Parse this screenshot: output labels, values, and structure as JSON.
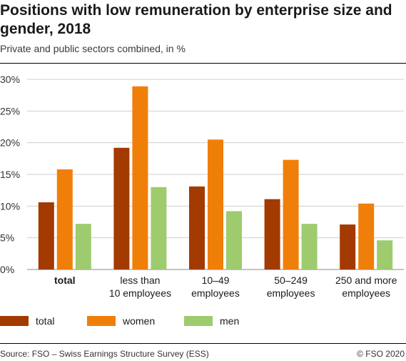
{
  "header": {
    "title": "Positions with low remuneration by enterprise size and gender, 2018",
    "subtitle": "Private and public sectors combined, in %"
  },
  "footer": {
    "source": "Source: FSO – Swiss Earnings Structure Survey (ESS)",
    "copyright": "© FSO 2020"
  },
  "chart_data": {
    "type": "bar",
    "categories": [
      [
        "total"
      ],
      [
        "less than",
        "10 employees"
      ],
      [
        "10–49",
        "employees"
      ],
      [
        "50–249",
        "employees"
      ],
      [
        "250 and more",
        "employees"
      ]
    ],
    "bold_categories": [
      0
    ],
    "series": [
      {
        "name": "total",
        "color": "#a33a00",
        "values": [
          10.6,
          19.2,
          13.1,
          11.1,
          7.1
        ]
      },
      {
        "name": "women",
        "color": "#f07f09",
        "values": [
          15.8,
          28.9,
          20.5,
          17.3,
          10.4
        ]
      },
      {
        "name": "men",
        "color": "#9ecb6e",
        "values": [
          7.2,
          13.0,
          9.2,
          7.2,
          4.6
        ]
      }
    ],
    "ylim": [
      0,
      30
    ],
    "yticks": [
      0,
      5,
      10,
      15,
      20,
      25,
      30
    ],
    "ytick_labels": [
      "0%",
      "5%",
      "10%",
      "15%",
      "20%",
      "25%",
      "30%"
    ],
    "grid": true,
    "legend_position": "bottom-left",
    "title": "",
    "xlabel": "",
    "ylabel": ""
  }
}
